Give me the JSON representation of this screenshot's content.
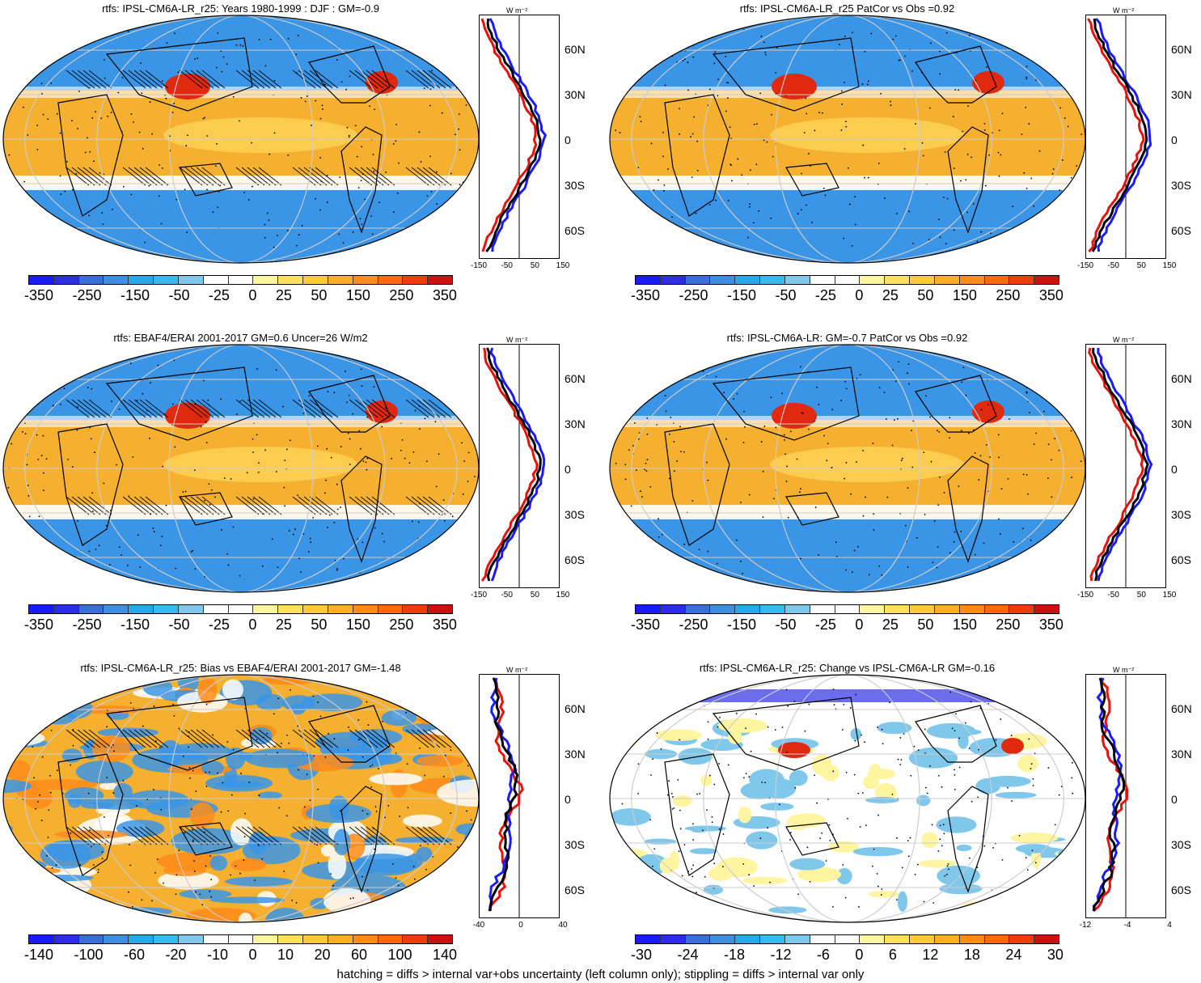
{
  "footer": "hatching = diffs > internal var+obs uncertainty (left column only); stippling = diffs > internal var only",
  "colors": {
    "scale": [
      "#1a1aff",
      "#2d2de6",
      "#3a6fd9",
      "#3f8fe0",
      "#2aa7e8",
      "#3bb8ee",
      "#7fc8ec",
      "#ffffff",
      "#ffffff",
      "#fff5a0",
      "#ffe060",
      "#ffc840",
      "#ffae2a",
      "#ff8c1a",
      "#ff6a10",
      "#f23c0c",
      "#d01010"
    ],
    "ocean_pos": "#f5b030",
    "ocean_neg": "#3a95e6"
  },
  "panels": [
    {
      "title": "rtfs: IPSL-CM6A-LR_r25: Years 1980-1999 : DJF : GM=-0.9",
      "colorbar_labels": [
        "-350",
        "-250",
        "-150",
        "-50",
        "-25",
        "0",
        "25",
        "50",
        "150",
        "250",
        "350"
      ],
      "zonal_xticks": [
        "-150",
        "-50",
        "50",
        "150"
      ],
      "unit": "W m⁻²",
      "lat_labels": [
        "60N",
        "30N",
        "0",
        "30S",
        "60S"
      ],
      "hatched": true
    },
    {
      "title": "rtfs: IPSL-CM6A-LR_r25 PatCor vs Obs =0.92",
      "colorbar_labels": [
        "-350",
        "-250",
        "-150",
        "-50",
        "-25",
        "0",
        "25",
        "50",
        "150",
        "250",
        "350"
      ],
      "zonal_xticks": [
        "-150",
        "-50",
        "50",
        "150"
      ],
      "unit": "W m⁻²",
      "lat_labels": [
        "60N",
        "30N",
        "0",
        "30S",
        "60S"
      ],
      "hatched": false
    },
    {
      "title": "rtfs: EBAF4/ERAI 2001-2017 GM=0.6 Uncer=26 W/m2",
      "colorbar_labels": [
        "-350",
        "-250",
        "-150",
        "-50",
        "-25",
        "0",
        "25",
        "50",
        "150",
        "250",
        "350"
      ],
      "zonal_xticks": [
        "-150",
        "-50",
        "50",
        "150"
      ],
      "unit": "W m⁻²",
      "lat_labels": [
        "60N",
        "30N",
        "0",
        "30S",
        "60S"
      ],
      "hatched": true
    },
    {
      "title": "rtfs: IPSL-CM6A-LR: GM=-0.7 PatCor vs Obs =0.92",
      "colorbar_labels": [
        "-350",
        "-250",
        "-150",
        "-50",
        "-25",
        "0",
        "25",
        "50",
        "150",
        "250",
        "350"
      ],
      "zonal_xticks": [
        "-150",
        "-50",
        "50",
        "150"
      ],
      "unit": "W m⁻²",
      "lat_labels": [
        "60N",
        "30N",
        "0",
        "30S",
        "60S"
      ],
      "hatched": false
    },
    {
      "title": "rtfs: IPSL-CM6A-LR_r25: Bias vs EBAF4/ERAI 2001-2017 GM=-1.48",
      "colorbar_labels": [
        "-140",
        "-100",
        "-60",
        "-20",
        "-10",
        "0",
        "10",
        "20",
        "60",
        "100",
        "140"
      ],
      "zonal_xticks": [
        "-40",
        "0",
        "40"
      ],
      "unit": "W m⁻²",
      "lat_labels": [
        "60N",
        "30N",
        "0",
        "30S",
        "60S"
      ],
      "hatched": true
    },
    {
      "title": "rtfs: IPSL-CM6A-LR_r25: Change vs IPSL-CM6A-LR GM=-0.16",
      "colorbar_labels": [
        "-30",
        "-24",
        "-18",
        "-12",
        "-6",
        "0",
        "6",
        "12",
        "18",
        "24",
        "30"
      ],
      "zonal_xticks": [
        "-12",
        "-4",
        "4"
      ],
      "unit": "W m⁻²",
      "lat_labels": [
        "60N",
        "30N",
        "0",
        "30S",
        "60S"
      ],
      "hatched": false
    }
  ]
}
